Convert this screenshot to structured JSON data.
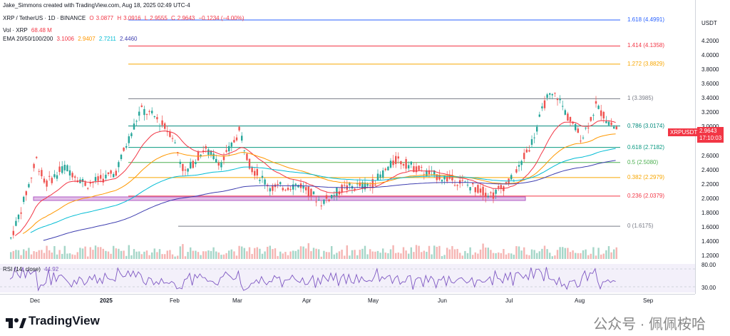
{
  "header": {
    "attribution": "Jake_Simmons created with TradingView.com, Aug 18, 2025 02:49 UTC-4",
    "symbol": "XRP / TetherUS · 1D · BINANCE",
    "ohlc": {
      "o_label": "O",
      "o": "3.0877",
      "h_label": "H",
      "h": "3.0916",
      "l_label": "L",
      "l": "2.9555",
      "c_label": "C",
      "c": "2.9643",
      "change": "−0.1234 (−4.00%)"
    },
    "volume_label": "Vol · XRP",
    "volume_value": "68.48 M",
    "ema_label": "EMA 20/50/100/200",
    "ema_values": [
      "3.1006",
      "2.9407",
      "2.7211",
      "2.4460"
    ]
  },
  "price_axis": {
    "currency": "USDT",
    "ticks": [
      "4.2000",
      "4.0000",
      "3.8000",
      "3.6000",
      "3.4000",
      "3.2000",
      "3.0000",
      "2.8000",
      "2.6000",
      "2.4000",
      "2.2000",
      "2.0000",
      "1.8000",
      "1.6000",
      "1.4000",
      "1.2000"
    ],
    "rsi_ticks": [
      "80.00",
      "30.00"
    ],
    "price_tag": "2.9643",
    "price_tag_sub": "17:10:03",
    "symbol_tag": "XRPUSDT"
  },
  "time_axis": [
    "Dec",
    "2025",
    "Feb",
    "Mar",
    "Apr",
    "May",
    "Jun",
    "Jul",
    "Aug",
    "Sep"
  ],
  "rsi": {
    "label": "RSI (14, close)",
    "value": "44.92"
  },
  "fib_levels": [
    {
      "label": "1.618 (4.4991)",
      "price": 4.4991,
      "color": "#2962ff"
    },
    {
      "label": "1.414 (4.1358)",
      "price": 4.1358,
      "color": "#f23645"
    },
    {
      "label": "1.272 (3.8829)",
      "price": 3.8829,
      "color": "#f7a600"
    },
    {
      "label": "1 (3.3985)",
      "price": 3.3985,
      "color": "#787b86"
    },
    {
      "label": "0.786 (3.0174)",
      "price": 3.0174,
      "color": "#00897b"
    },
    {
      "label": "0.618 (2.7182)",
      "price": 2.7182,
      "color": "#089981"
    },
    {
      "label": "0.5 (2.5080)",
      "price": 2.508,
      "color": "#4caf50"
    },
    {
      "label": "0.382 (2.2979)",
      "price": 2.2979,
      "color": "#f7a600"
    },
    {
      "label": "0.236 (2.0379)",
      "price": 2.0379,
      "color": "#f23645"
    },
    {
      "label": "0 (1.6175)",
      "price": 1.6175,
      "color": "#787b86"
    }
  ],
  "colors": {
    "up": "#26a69a",
    "down": "#ef5350",
    "ema20": "#f23645",
    "ema50": "#ff9800",
    "ema100": "#00bcd4",
    "ema200": "#3f3fb0",
    "rsi": "#7e57c2",
    "zone": "#e1bee7"
  },
  "chart_data": {
    "type": "line",
    "title": "XRP / TetherUS · 1D · BINANCE",
    "ylabel": "USDT",
    "ylim": [
      1.2,
      4.4
    ],
    "x": [
      "Dec",
      "2025",
      "Feb",
      "Mar",
      "Apr",
      "May",
      "Jun",
      "Jul",
      "Aug",
      "Sep"
    ],
    "series": [
      {
        "name": "XRPUSDT",
        "values": [
          2.4,
          2.2,
          3.1,
          2.7,
          2.1,
          2.5,
          2.2,
          2.5,
          3.3,
          2.96
        ]
      }
    ]
  },
  "footer": {
    "brand": "TradingView",
    "watermark": "公众号 · 佩佩桉哈"
  }
}
